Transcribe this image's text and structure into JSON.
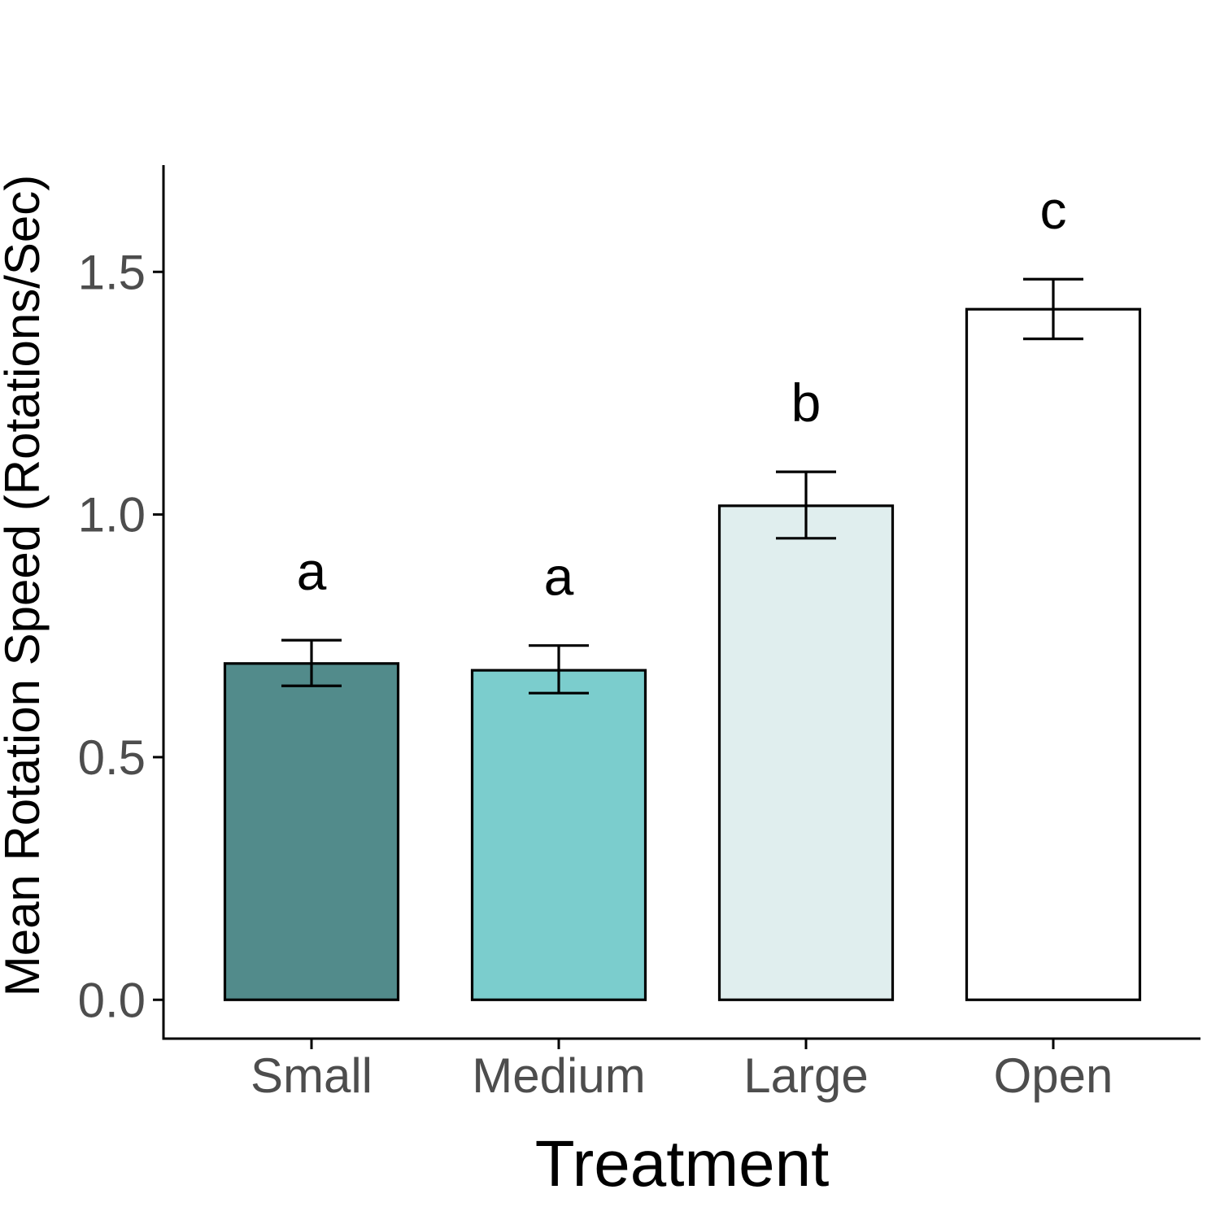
{
  "chart_data": {
    "type": "bar",
    "categories": [
      "Small",
      "Medium",
      "Large",
      "Open"
    ],
    "values": [
      0.693,
      0.679,
      1.018,
      1.423
    ],
    "error_low": [
      0.647,
      0.632,
      0.951,
      1.362
    ],
    "error_high": [
      0.741,
      0.73,
      1.088,
      1.485
    ],
    "group_labels": [
      "a",
      "a",
      "b",
      "c"
    ],
    "colors": [
      "#528b8b",
      "#7bcdcd",
      "#e0eeee",
      "#ffffff"
    ],
    "xlabel": "Treatment",
    "ylabel": "Mean Rotation Speed (Rotations/Sec)",
    "ylim": [
      -0.08,
      1.72
    ],
    "yticks": [
      0.0,
      0.5,
      1.0,
      1.5
    ],
    "ytick_labels": [
      "0.0",
      "0.5",
      "1.0",
      "1.5"
    ],
    "grid": false,
    "legend": "none"
  }
}
